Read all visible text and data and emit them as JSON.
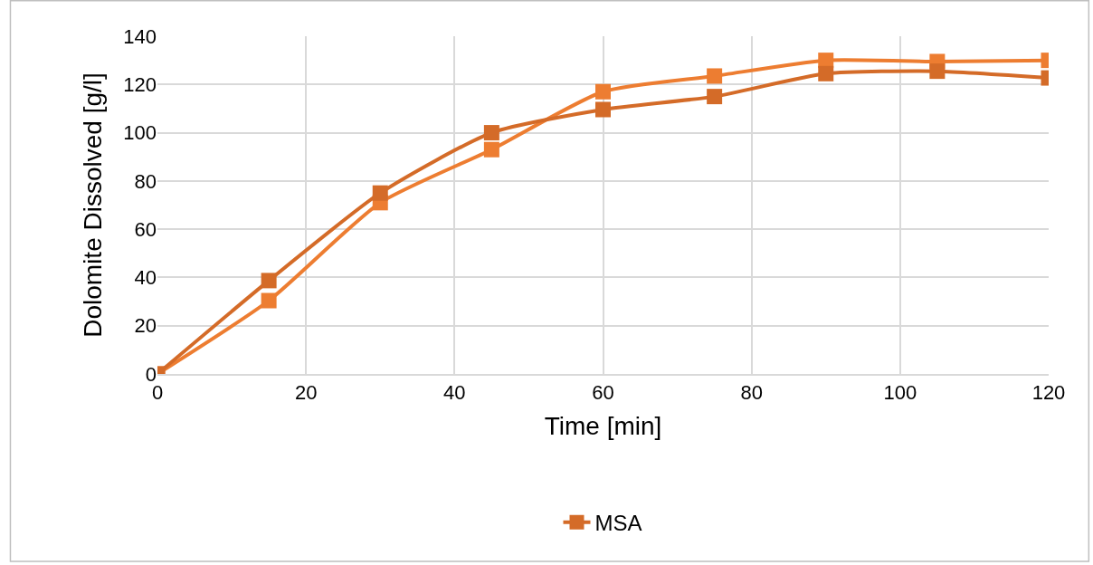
{
  "chart_data": {
    "type": "line",
    "xlabel": "Time [min]",
    "ylabel": "Dolomite Dissolved [g/l]",
    "x": [
      0,
      15,
      30,
      45,
      60,
      75,
      90,
      105,
      120
    ],
    "series": [
      {
        "color": "#ed7d31",
        "values": [
          0,
          30.4,
          71,
          93,
          117,
          123.5,
          130,
          129.5,
          130
        ]
      },
      {
        "name": "MSA",
        "color": "#d46b28",
        "values": [
          0,
          38.7,
          75,
          100,
          109.6,
          115,
          124.5,
          125.5,
          122.7
        ]
      }
    ],
    "xlim": [
      0,
      120
    ],
    "xticks": [
      0,
      20,
      40,
      60,
      80,
      100,
      120
    ],
    "ylim": [
      0,
      140
    ],
    "yticks": [
      0,
      20,
      40,
      60,
      80,
      100,
      120,
      140
    ],
    "grid": true,
    "legend": "bottom",
    "marker": "square",
    "line_style": "solid"
  }
}
